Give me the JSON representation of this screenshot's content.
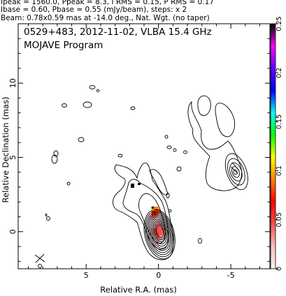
{
  "header": {
    "line1": "Ipeak = 1560.0, Ppeak = 8.3, I RMS = 0.15, P RMS = 0.17",
    "line2": "Ibase = 0.60, Pbase = 0.55 (mJy/beam), steps: x 2",
    "line3": "Beam: 0.78x0.59 mas at -14.0 deg., Nat. Wgt. (no taper)"
  },
  "chart_data": {
    "type": "contour",
    "title": "0529+483, 2012-11-02, VLBA 15.4 GHz",
    "subtitle": "MOJAVE Program",
    "xlabel": "Relative R.A. (mas)",
    "ylabel": "Relative Declination (mas)",
    "xlim": [
      9.7,
      -7.7
    ],
    "ylim": [
      -2.5,
      14.0
    ],
    "x_ticks": [
      {
        "value": 5,
        "label": "5"
      },
      {
        "value": 0,
        "label": "0"
      },
      {
        "value": -5,
        "label": "-5"
      }
    ],
    "y_ticks": [
      {
        "value": 0,
        "label": "0"
      },
      {
        "value": 5,
        "label": "5"
      },
      {
        "value": 10,
        "label": "10"
      }
    ],
    "colorbar": {
      "min": 0,
      "max": 0.25,
      "ticks": [
        {
          "value": 0,
          "label": "0"
        },
        {
          "value": 0.05,
          "label": "0.05"
        },
        {
          "value": 0.1,
          "label": "0.1"
        },
        {
          "value": 0.15,
          "label": "0.15"
        },
        {
          "value": 0.2,
          "label": "0.2"
        },
        {
          "value": 0.25,
          "label": "0.25"
        }
      ],
      "colors": [
        "#fff0f0",
        "#f5c0c0",
        "#ff5050",
        "#ff0000",
        "#ff8000",
        "#ffff00",
        "#00ff00",
        "#00ffff",
        "#0000ff",
        "#6000ff",
        "#ff00ff",
        "#000000"
      ]
    },
    "core": {
      "x": 0.0,
      "y": 0.0,
      "contour_levels": 11
    },
    "jet_component": {
      "x": -5.0,
      "y": 4.0
    },
    "beam": {
      "x": 8.2,
      "y": -1.8,
      "major_mas": 0.78,
      "minor_mas": 0.59,
      "pa_deg": -14.0
    }
  }
}
